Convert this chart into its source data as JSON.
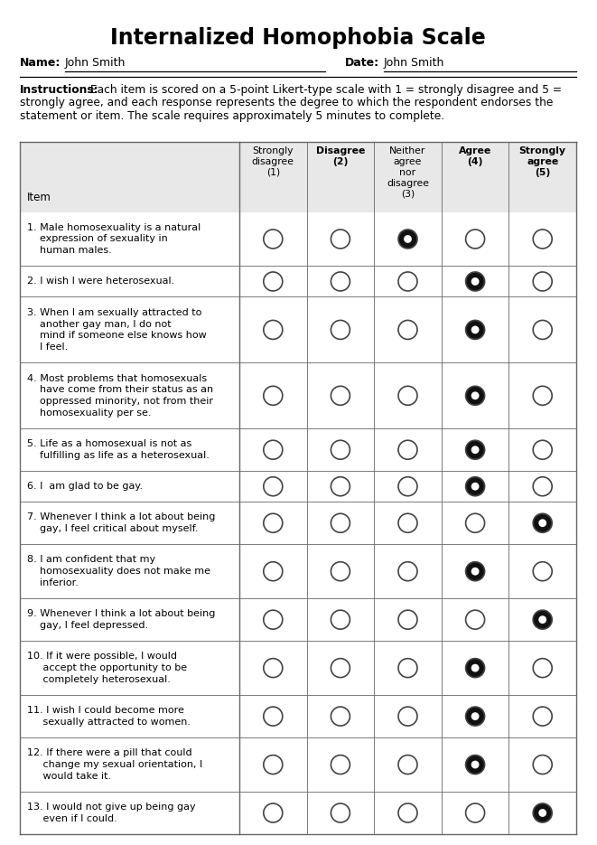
{
  "title": "Internalized Homophobia Scale",
  "name_label": "Name:",
  "name_value": "John Smith",
  "date_label": "Date:",
  "date_value": "John Smith",
  "instructions_bold": "Instructions:",
  "instructions_lines": [
    " Each item is scored on a 5-point Likert-type scale with 1 = strongly disagree and 5 =",
    "strongly agree, and each response represents the degree to which the respondent endorses the",
    "statement or item. The scale requires approximately 5 minutes to complete."
  ],
  "col_headers": [
    "Strongly\ndisagree\n(1)",
    "Disagree\n(2)",
    "Neither\nagree\nnor\ndisagree\n(3)",
    "Agree\n(4)",
    "Strongly\nagree\n(5)"
  ],
  "col_header_bold": [
    false,
    true,
    false,
    true,
    true
  ],
  "item_label": "Item",
  "items": [
    "1. Male homosexuality is a natural\n    expression of sexuality in\n    human males.",
    "2. I wish I were heterosexual.",
    "3. When I am sexually attracted to\n    another gay man, I do not\n    mind if someone else knows how\n    I feel.",
    "4. Most problems that homosexuals\n    have come from their status as an\n    oppressed minority, not from their\n    homosexuality per se.",
    "5. Life as a homosexual is not as\n    fulfilling as life as a heterosexual.",
    "6. I  am glad to be gay.",
    "7. Whenever I think a lot about being\n    gay, I feel critical about myself.",
    "8. I am confident that my\n    homosexuality does not make me\n    inferior.",
    "9. Whenever I think a lot about being\n    gay, I feel depressed.",
    "10. If it were possible, I would\n     accept the opportunity to be\n     completely heterosexual.",
    "11. I wish I could become more\n     sexually attracted to women.",
    "12. If there were a pill that could\n     change my sexual orientation, I\n     would take it.",
    "13. I would not give up being gay\n     even if I could."
  ],
  "responses": [
    3,
    4,
    4,
    4,
    4,
    4,
    5,
    4,
    5,
    4,
    4,
    4,
    5
  ],
  "row_line_counts": [
    3,
    1,
    4,
    4,
    2,
    1,
    2,
    3,
    2,
    3,
    2,
    3,
    2
  ],
  "header_bg": "#e8e8e8",
  "table_border": "#666666",
  "circle_edge_color": "#444444",
  "circle_fill_color": "#111111",
  "circle_empty_fill": "#ffffff"
}
